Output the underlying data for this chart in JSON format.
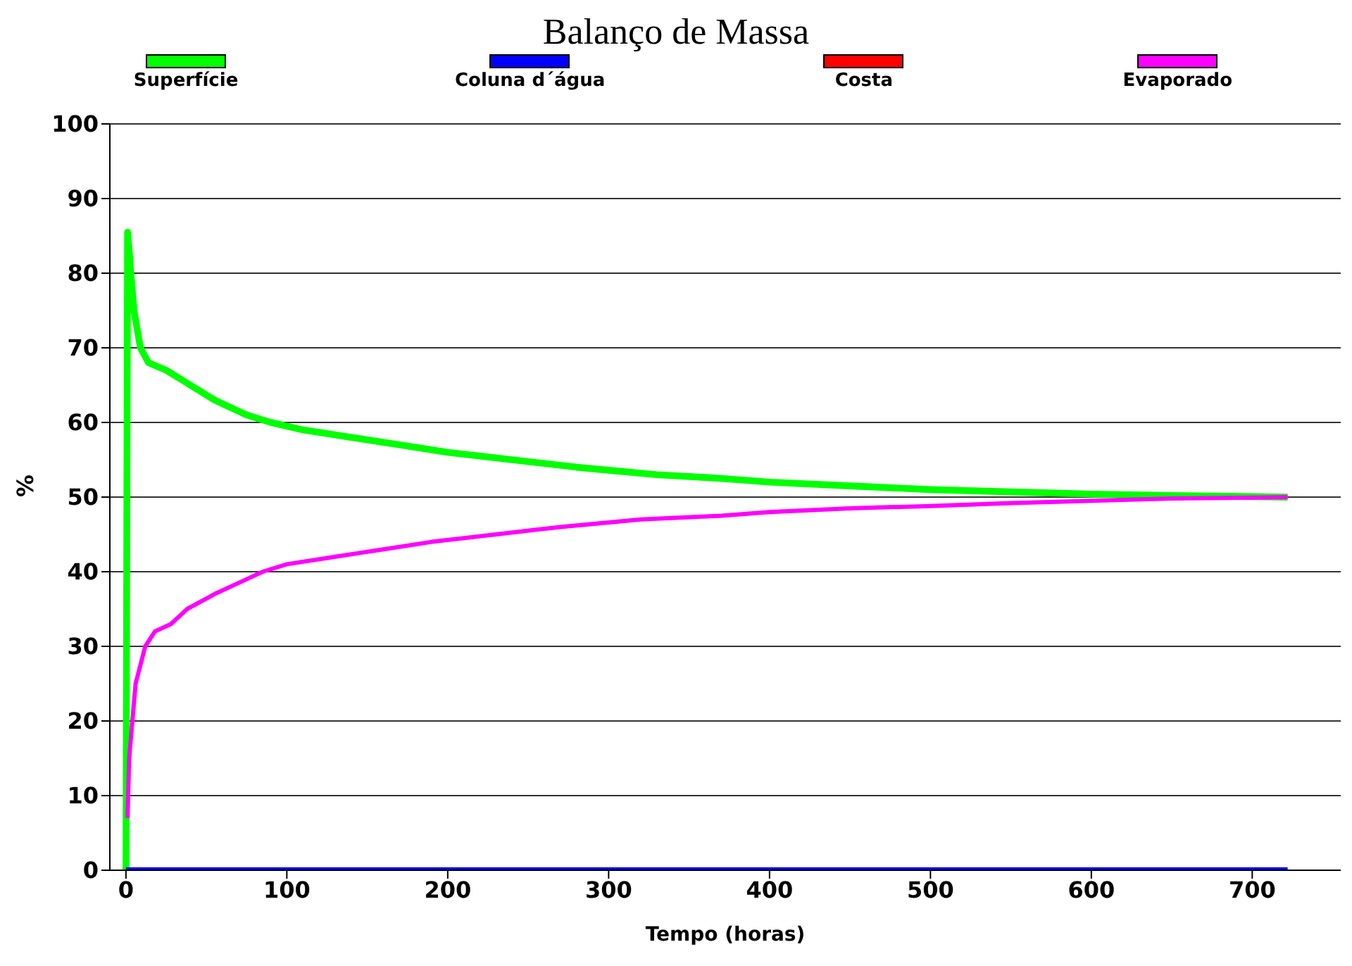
{
  "chart_data": {
    "type": "line",
    "title": "Balanço de Massa",
    "xlabel": "Tempo (horas)",
    "ylabel": "%",
    "xlim": [
      -10,
      755
    ],
    "xticks": [
      0,
      100,
      200,
      300,
      400,
      500,
      600,
      700
    ],
    "ylim": [
      0,
      100
    ],
    "yticks": [
      0,
      10,
      20,
      30,
      40,
      50,
      60,
      70,
      80,
      90,
      100
    ],
    "grid": "y",
    "legend": "top",
    "marker": "none",
    "line_style": "solid",
    "series": [
      {
        "name": "Superfície",
        "color": "#00ff00",
        "x": [
          0,
          1,
          2,
          3,
          5,
          9,
          14,
          25,
          40,
          55,
          75,
          90,
          110,
          140,
          170,
          200,
          240,
          280,
          330,
          370,
          400,
          450,
          500,
          550,
          600,
          650,
          722
        ],
        "values": [
          0,
          85.5,
          83,
          80,
          75,
          70,
          68,
          67,
          65,
          63,
          61,
          60,
          59,
          58,
          57,
          56,
          55,
          54,
          53,
          52.5,
          52,
          51.5,
          51,
          50.7,
          50.4,
          50.2,
          50
        ]
      },
      {
        "name": "Coluna d´água",
        "color": "#0000ff",
        "x": [
          0,
          722
        ],
        "values": [
          0,
          0
        ]
      },
      {
        "name": "Costa",
        "color": "#ff0000"
      },
      {
        "name": "Evaporado",
        "color": "#ff00ff",
        "x": [
          1,
          2,
          4,
          6,
          12,
          18,
          28,
          38,
          55,
          75,
          85,
          100,
          130,
          160,
          190,
          230,
          270,
          320,
          370,
          400,
          450,
          500,
          550,
          600,
          650,
          722
        ],
        "values": [
          7,
          15,
          20,
          25,
          30,
          32,
          33,
          35,
          37,
          39,
          40,
          41,
          42,
          43,
          44,
          45,
          46,
          47,
          47.5,
          48,
          48.5,
          48.8,
          49.2,
          49.5,
          49.8,
          50
        ]
      }
    ]
  }
}
